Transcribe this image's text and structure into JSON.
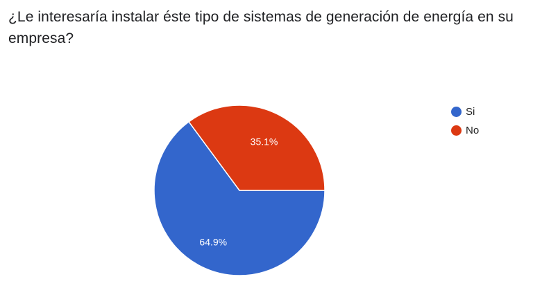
{
  "question": {
    "title": "¿Le interesaría instalar éste tipo de sistemas de generación de energía en su empresa?"
  },
  "chart_data": {
    "type": "pie",
    "title": "",
    "slices": [
      {
        "label": "Si",
        "value": 64.9,
        "display": "64.9%",
        "color": "#3366cc"
      },
      {
        "label": "No",
        "value": 35.1,
        "display": "35.1%",
        "color": "#dc3912"
      }
    ],
    "legend_position": "right"
  }
}
